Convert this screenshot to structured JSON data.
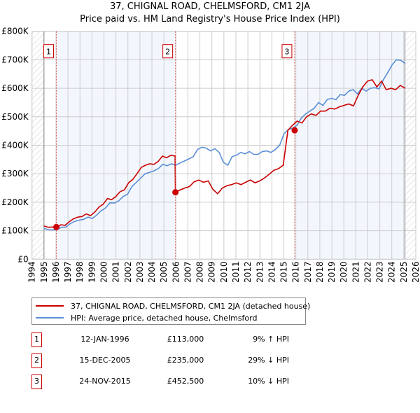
{
  "chart_data": {
    "type": "line",
    "title": "37, CHIGNAL ROAD, CHELMSFORD, CM1 2JA",
    "subtitle": "Price paid vs. HM Land Registry's House Price Index (HPI)",
    "xlim": [
      1994,
      2026
    ],
    "ylim": [
      0,
      800000
    ],
    "x_ticks": [
      "1994",
      "1995",
      "1996",
      "1997",
      "1998",
      "1999",
      "2000",
      "2001",
      "2002",
      "2003",
      "2004",
      "2005",
      "2006",
      "2007",
      "2008",
      "2009",
      "2010",
      "2011",
      "2012",
      "2013",
      "2014",
      "2015",
      "2016",
      "2017",
      "2018",
      "2019",
      "2020",
      "2021",
      "2022",
      "2023",
      "2024",
      "2025",
      "2026"
    ],
    "y_ticks": [
      {
        "v": 0,
        "label": "£0"
      },
      {
        "v": 100000,
        "label": "£100K"
      },
      {
        "v": 200000,
        "label": "£200K"
      },
      {
        "v": 300000,
        "label": "£300K"
      },
      {
        "v": 400000,
        "label": "£400K"
      },
      {
        "v": 500000,
        "label": "£500K"
      },
      {
        "v": 600000,
        "label": "£600K"
      },
      {
        "v": 700000,
        "label": "£700K"
      },
      {
        "v": 800000,
        "label": "£800K"
      }
    ],
    "grid": true,
    "data_start": 1995,
    "data_end": 2025.1,
    "shaded_ranges": [
      [
        1996.03,
        2005.96
      ],
      [
        2015.9,
        2025.1
      ]
    ],
    "series": [
      {
        "name": "37, CHIGNAL ROAD, CHELMSFORD, CM1 2JA (detached house)",
        "color": "#cc0000",
        "points": [
          [
            1995,
            117000
          ],
          [
            1995.5,
            112000
          ],
          [
            1996.03,
            113000
          ],
          [
            1996.5,
            110000
          ],
          [
            1997,
            120000
          ],
          [
            1997.6,
            120000
          ],
          [
            1998,
            132000
          ],
          [
            1998.5,
            142000
          ],
          [
            1999,
            148000
          ],
          [
            1999.4,
            150000
          ],
          [
            1999.7,
            160000
          ],
          [
            2000,
            155000
          ],
          [
            2000.5,
            167000
          ],
          [
            2001,
            185000
          ],
          [
            2001.5,
            195000
          ],
          [
            2002,
            212000
          ],
          [
            2002.3,
            218000
          ],
          [
            2002.6,
            220000
          ],
          [
            2003,
            235000
          ],
          [
            2003.5,
            250000
          ],
          [
            2004,
            275000
          ],
          [
            2004.5,
            305000
          ],
          [
            2005,
            325000
          ],
          [
            2005.5,
            335000
          ],
          [
            2006,
            345000
          ],
          [
            2006.5,
            362000
          ],
          [
            2007,
            355000
          ],
          [
            2007.5,
            365000
          ],
          [
            2007.8,
            362000
          ],
          [
            2005.96,
            362000
          ]
        ]
      },
      {
        "name": "HPI: Average price, detached house, Chelmsford",
        "color": "#5b8ed6",
        "points": []
      }
    ],
    "price_paid": [
      [
        1995,
        117000
      ],
      [
        1995.5,
        113000
      ],
      [
        1996.03,
        113000
      ],
      [
        1996.4,
        110000
      ],
      [
        1997,
        120000
      ],
      [
        1997.6,
        119000
      ],
      [
        1998,
        130000
      ],
      [
        1998.5,
        142000
      ],
      [
        1999,
        147000
      ],
      [
        1999.4,
        150000
      ],
      [
        1999.7,
        160000
      ],
      [
        2000,
        153000
      ],
      [
        2000.5,
        165000
      ],
      [
        2001,
        183000
      ],
      [
        2001.4,
        193000
      ],
      [
        2001.8,
        214000
      ],
      [
        2002.1,
        210000
      ],
      [
        2002.5,
        220000
      ],
      [
        2003,
        237000
      ],
      [
        2003.3,
        243000
      ],
      [
        2003.6,
        265000
      ],
      [
        2004,
        285000
      ],
      [
        2004.3,
        305000
      ],
      [
        2004.8,
        325000
      ],
      [
        2005.2,
        335000
      ],
      [
        2005.5,
        345000
      ],
      [
        2005.8,
        338000
      ],
      [
        2006.1,
        345000
      ],
      [
        2006.5,
        362000
      ],
      [
        2006.9,
        355000
      ],
      [
        2007.2,
        365000
      ],
      [
        2007.5,
        360000
      ],
      [
        2005.96,
        362000
      ]
    ],
    "hpi": [],
    "sales": [
      {
        "n": "1",
        "x": 1996.03,
        "price": 113000,
        "date": "12-JAN-1996",
        "price_label": "£113,000",
        "hpi_label": "9% ↑ HPI"
      },
      {
        "n": "2",
        "x": 2005.96,
        "price": 235000,
        "date": "15-DEC-2005",
        "price_label": "£235,000",
        "hpi_label": "29% ↓ HPI"
      },
      {
        "n": "3",
        "x": 2015.9,
        "price": 452500,
        "date": "24-NOV-2015",
        "price_label": "£452,500",
        "hpi_label": "10% ↓ HPI"
      }
    ],
    "legend": [
      "37, CHIGNAL ROAD, CHELMSFORD, CM1 2JA (detached house)",
      "HPI: Average price, detached house, Chelmsford"
    ],
    "legend_placement": "below"
  },
  "series_red": [
    [
      1995,
      117000
    ],
    [
      1995.5,
      112000
    ],
    [
      1996.03,
      113000
    ],
    [
      1996.4,
      110000
    ],
    [
      1997,
      121000
    ],
    [
      1997.6,
      119000
    ],
    [
      1998,
      132000
    ],
    [
      1998.5,
      142000
    ],
    [
      1999,
      148000
    ],
    [
      1999.4,
      150000
    ],
    [
      1999.7,
      159000
    ],
    [
      2000,
      153000
    ],
    [
      2000.5,
      165000
    ],
    [
      2001,
      183000
    ],
    [
      2001.4,
      193000
    ],
    [
      2001.8,
      213000
    ],
    [
      2002.1,
      209000
    ],
    [
      2002.5,
      220000
    ],
    [
      2003,
      237000
    ],
    [
      2003.3,
      243000
    ],
    [
      2003.7,
      268000
    ],
    [
      2004,
      280000
    ],
    [
      2004.3,
      300000
    ],
    [
      2004.8,
      322000
    ],
    [
      2005.2,
      330000
    ],
    [
      2005.6,
      335000
    ],
    [
      2005.8,
      333000
    ],
    [
      2006.1,
      343000
    ],
    [
      2006.5,
      362000
    ],
    [
      2006.9,
      356000
    ],
    [
      2007.2,
      365000
    ],
    [
      2007.5,
      362000
    ],
    [
      2005.93,
      360000
    ],
    [
      2005.96,
      235000
    ],
    [
      2006.5,
      243000
    ],
    [
      2007,
      250000
    ],
    [
      2007.5,
      255000
    ],
    [
      2007.8,
      272000
    ],
    [
      2008.2,
      278000
    ],
    [
      2008.6,
      270000
    ],
    [
      2008.9,
      275000
    ],
    [
      2009.2,
      245000
    ],
    [
      2009.5,
      230000
    ],
    [
      2010,
      250000
    ],
    [
      2010.5,
      258000
    ],
    [
      2011,
      262000
    ],
    [
      2011.5,
      268000
    ],
    [
      2012,
      262000
    ],
    [
      2012.5,
      270000
    ],
    [
      2012.7,
      278000
    ],
    [
      2013,
      268000
    ],
    [
      2013.5,
      275000
    ],
    [
      2014,
      285000
    ],
    [
      2014.5,
      298000
    ],
    [
      2015,
      312000
    ],
    [
      2015.5,
      318000
    ],
    [
      2015.85,
      330000
    ],
    [
      2015.9,
      452500
    ],
    [
      2016.3,
      470000
    ],
    [
      2016.7,
      485000
    ],
    [
      2017,
      478000
    ],
    [
      2017.5,
      500000
    ],
    [
      2018,
      510000
    ],
    [
      2018.4,
      505000
    ],
    [
      2018.8,
      520000
    ],
    [
      2019.3,
      520000
    ],
    [
      2019.7,
      530000
    ],
    [
      2020,
      527000
    ],
    [
      2020.5,
      535000
    ],
    [
      2021,
      540000
    ],
    [
      2021.3,
      545000
    ],
    [
      2021.6,
      538000
    ],
    [
      2022,
      575000
    ],
    [
      2022.5,
      605000
    ],
    [
      2022.8,
      625000
    ],
    [
      2023.2,
      630000
    ],
    [
      2023.5,
      605000
    ],
    [
      2023.8,
      625000
    ],
    [
      2024.1,
      595000
    ],
    [
      2024.5,
      600000
    ],
    [
      2024.8,
      595000
    ],
    [
      2025,
      610000
    ],
    [
      2025.1,
      600000
    ]
  ],
  "series_blue": [
    [
      1995,
      108000
    ],
    [
      1995.5,
      104000
    ],
    [
      1996,
      103000
    ],
    [
      1996.4,
      104000
    ],
    [
      1997,
      112000
    ],
    [
      1997.6,
      113000
    ],
    [
      1998,
      125000
    ],
    [
      1998.5,
      133000
    ],
    [
      1999,
      137000
    ],
    [
      1999.4,
      140000
    ],
    [
      1999.7,
      148000
    ],
    [
      2000,
      143000
    ],
    [
      2000.5,
      155000
    ],
    [
      2001,
      170000
    ],
    [
      2001.4,
      180000
    ],
    [
      2001.8,
      198000
    ],
    [
      2002.1,
      197000
    ],
    [
      2002.5,
      205000
    ],
    [
      2003,
      220000
    ],
    [
      2003.3,
      228000
    ],
    [
      2003.7,
      255000
    ],
    [
      2004,
      270000
    ],
    [
      2004.3,
      285000
    ],
    [
      2004.8,
      300000
    ],
    [
      2005.2,
      305000
    ],
    [
      2005.6,
      310000
    ],
    [
      2006,
      318000
    ],
    [
      2006.5,
      333000
    ],
    [
      2006.9,
      328000
    ],
    [
      2007.2,
      335000
    ],
    [
      2007.5,
      330000
    ],
    [
      2006,
      330000
    ],
    [
      2006.5,
      338000
    ],
    [
      2007,
      345000
    ],
    [
      2007.5,
      352000
    ],
    [
      2007.9,
      360000
    ],
    [
      2008.3,
      385000
    ],
    [
      2008.6,
      393000
    ],
    [
      2009,
      390000
    ],
    [
      2009.3,
      380000
    ],
    [
      2009.6,
      388000
    ],
    [
      2009.9,
      375000
    ],
    [
      2010.2,
      340000
    ],
    [
      2010.4,
      330000
    ],
    [
      2010.9,
      360000
    ],
    [
      2011.3,
      365000
    ],
    [
      2011.8,
      375000
    ],
    [
      2012.1,
      370000
    ],
    [
      2012.5,
      378000
    ],
    [
      2012.8,
      368000
    ],
    [
      2013.3,
      368000
    ],
    [
      2013.7,
      378000
    ],
    [
      2014.1,
      380000
    ],
    [
      2014.6,
      375000
    ],
    [
      2015,
      385000
    ],
    [
      2015.5,
      400000
    ],
    [
      2015.9,
      440000
    ],
    [
      2016.3,
      455000
    ],
    [
      2016.7,
      460000
    ],
    [
      2017,
      470000
    ],
    [
      2017.4,
      495000
    ],
    [
      2017.8,
      510000
    ],
    [
      2018.1,
      520000
    ],
    [
      2018.5,
      530000
    ],
    [
      2018.9,
      550000
    ],
    [
      2019.3,
      540000
    ],
    [
      2019.7,
      560000
    ],
    [
      2020,
      565000
    ],
    [
      2020.4,
      560000
    ],
    [
      2020.8,
      578000
    ],
    [
      2021.1,
      575000
    ],
    [
      2021.5,
      590000
    ],
    [
      2021.9,
      595000
    ],
    [
      2022.3,
      580000
    ],
    [
      2022.7,
      600000
    ],
    [
      2023,
      590000
    ],
    [
      2023.4,
      600000
    ],
    [
      2023.8,
      602000
    ],
    [
      2024.2,
      598000
    ],
    [
      2024.5,
      630000
    ],
    [
      2024.9,
      655000
    ],
    [
      2025.3,
      682000
    ],
    [
      2025.6,
      700000
    ],
    [
      2025.9,
      698000
    ],
    [
      2026.2,
      688000
    ]
  ]
}
